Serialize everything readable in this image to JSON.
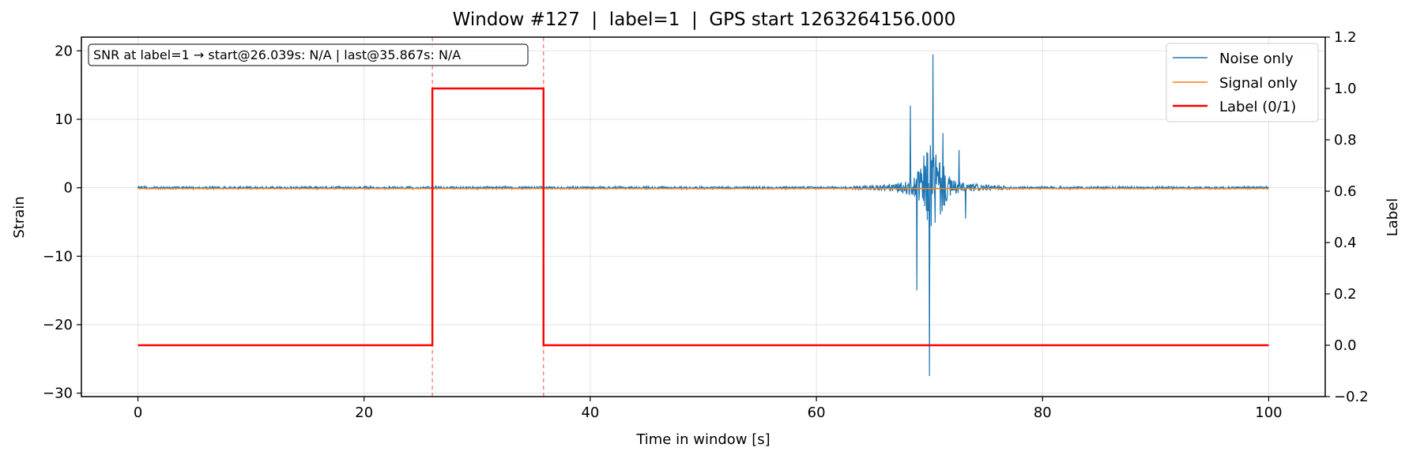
{
  "chart_data": {
    "type": "line",
    "title": "Window #127  |  label=1  |  GPS start 1263264156.000",
    "xlabel": "Time in window [s]",
    "ylabel": "Strain",
    "y2label": "Label",
    "xlim": [
      -5,
      105
    ],
    "ylim": [
      -30.5,
      22
    ],
    "y2lim": [
      -0.2,
      1.2
    ],
    "xticks": [
      0,
      20,
      40,
      60,
      80,
      100
    ],
    "yticks": [
      20,
      10,
      0,
      -10,
      -20,
      -30
    ],
    "ytick_labels": [
      "20",
      "10",
      "0",
      "−10",
      "−20",
      "−30"
    ],
    "y2ticks": [
      1.2,
      1.0,
      0.8,
      0.6,
      0.4,
      0.2,
      0.0,
      -0.2
    ],
    "y2tick_labels": [
      "1.2",
      "1.0",
      "0.8",
      "0.6",
      "0.4",
      "0.2",
      "0.0",
      "−0.2"
    ],
    "grid": true,
    "legend_position": "top-right",
    "annotation": "SNR at label=1 → start@26.039s: N/A | last@35.867s: N/A",
    "markers": [
      26.039,
      35.867
    ],
    "series": [
      {
        "name": "Noise only",
        "color": "#1f77b4",
        "axis": "left",
        "x_range": [
          0,
          100
        ],
        "peaks": [
          {
            "x": 68.3,
            "y": 12.0
          },
          {
            "x": 68.9,
            "y": -15.0
          },
          {
            "x": 70.0,
            "y": -27.5
          },
          {
            "x": 70.3,
            "y": 19.5
          },
          {
            "x": 71.2,
            "y": 8.0
          },
          {
            "x": 72.6,
            "y": 5.5
          },
          {
            "x": 73.2,
            "y": -4.5
          }
        ]
      },
      {
        "name": "Signal only",
        "color": "#ff7f0e",
        "axis": "left",
        "x": [
          0,
          100
        ],
        "y": [
          0,
          0
        ]
      },
      {
        "name": "Label (0/1)",
        "color": "#ff0000",
        "axis": "right",
        "x": [
          0,
          26.039,
          26.039,
          35.867,
          35.867,
          100
        ],
        "y": [
          0,
          0,
          1,
          1,
          0,
          0
        ]
      }
    ]
  }
}
